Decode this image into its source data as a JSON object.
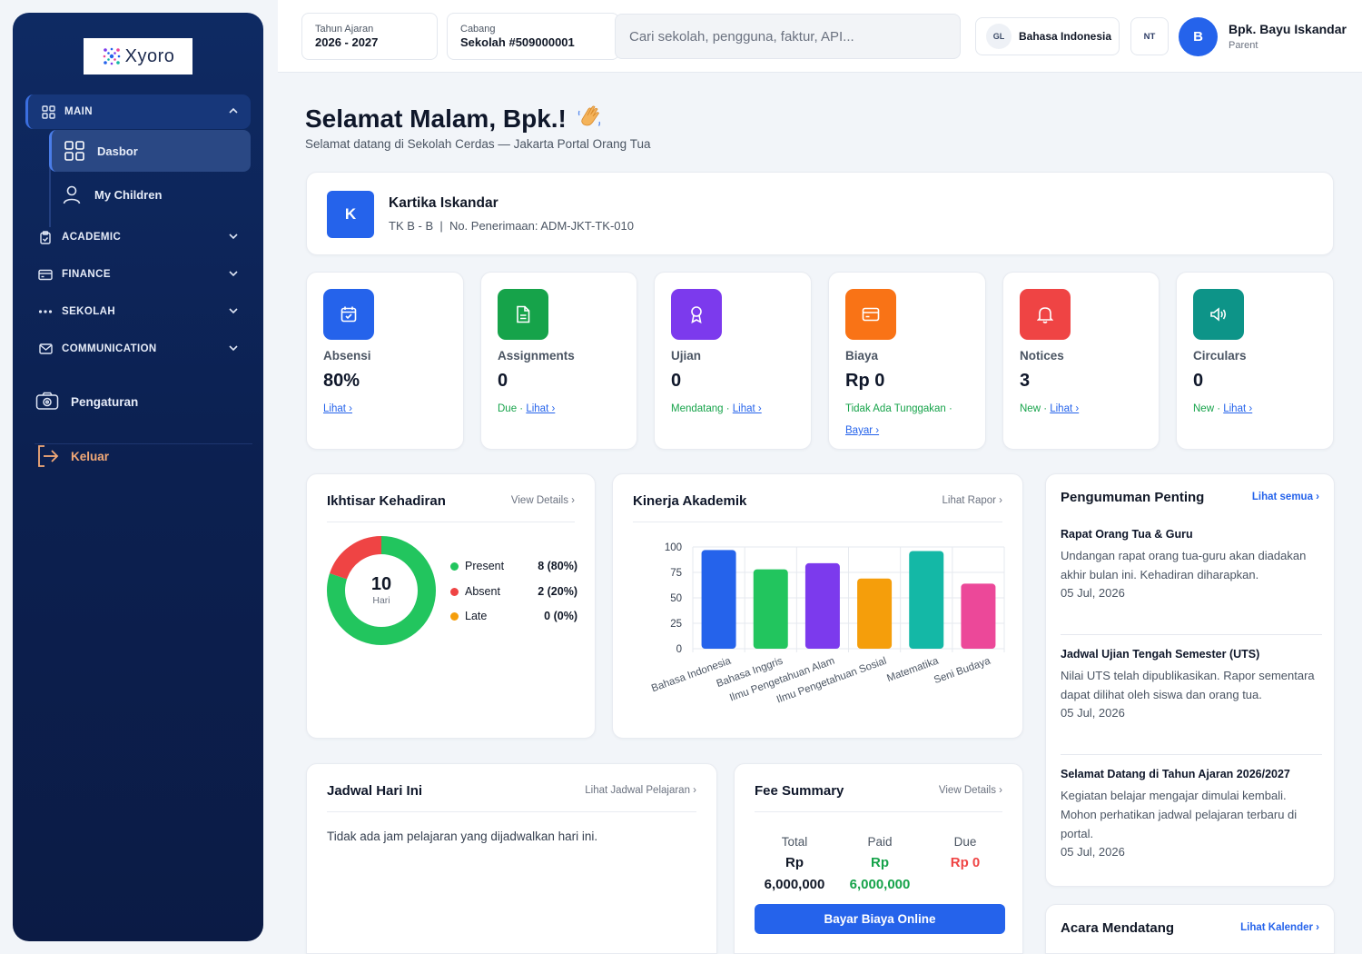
{
  "brand": {
    "name": "Xyoro"
  },
  "sidebar": {
    "main_label": "MAIN",
    "items": [
      {
        "label": "Dasbor"
      },
      {
        "label": "My Children"
      }
    ],
    "groups": [
      {
        "label": "ACADEMIC"
      },
      {
        "label": "FINANCE"
      },
      {
        "label": "SEKOLAH"
      },
      {
        "label": "COMMUNICATION"
      }
    ],
    "settings_label": "Pengaturan",
    "logout_label": "Keluar"
  },
  "topbar": {
    "year_label": "Tahun Ajaran",
    "year_value": "2026 - 2027",
    "branch_label": "Cabang",
    "branch_value": "Sekolah #509000001",
    "search_placeholder": "Cari sekolah, pengguna, faktur, API...",
    "lang_badge": "GL",
    "lang_label": "Bahasa Indonesia",
    "nt_badge": "NT",
    "avatar_initial": "B",
    "user_name": "Bpk. Bayu Iskandar",
    "user_role": "Parent"
  },
  "greeting": {
    "title": "Selamat Malam, Bpk.!",
    "subtitle": "Selamat datang di Sekolah Cerdas — Jakarta Portal Orang Tua"
  },
  "child": {
    "initial": "K",
    "name": "Kartika Iskandar",
    "meta": "TK B - B  |  No. Penerimaan: ADM-JKT-TK-010"
  },
  "stats": [
    {
      "label": "Absensi",
      "value": "80%",
      "note": "",
      "link": "Lihat ›",
      "color": "#2563eb",
      "icon": "calendar-check-icon"
    },
    {
      "label": "Assignments",
      "value": "0",
      "note": "Due · ",
      "link": "Lihat ›",
      "color": "#16a34a",
      "icon": "document-icon"
    },
    {
      "label": "Ujian",
      "value": "0",
      "note": "Mendatang · ",
      "link": "Lihat ›",
      "color": "#7c3aed",
      "icon": "award-icon"
    },
    {
      "label": "Biaya",
      "value": "Rp 0",
      "note": "Tidak Ada Tunggakan · ",
      "link": "Bayar ›",
      "color": "#f97316",
      "icon": "credit-card-icon"
    },
    {
      "label": "Notices",
      "value": "3",
      "note": "New · ",
      "link": "Lihat ›",
      "color": "#ef4444",
      "icon": "bell-icon"
    },
    {
      "label": "Circulars",
      "value": "0",
      "note": "New · ",
      "link": "Lihat ›",
      "color": "#0d9488",
      "icon": "megaphone-icon"
    }
  ],
  "attendance": {
    "title": "Ikhtisar Kehadiran",
    "link": "View Details ›",
    "total": "10",
    "total_unit": "Hari",
    "rows": [
      {
        "label": "Present",
        "value": "8 (80%)",
        "color": "#22c55e",
        "fraction": 0.8
      },
      {
        "label": "Absent",
        "value": "2 (20%)",
        "color": "#ef4444",
        "fraction": 0.2
      },
      {
        "label": "Late",
        "value": "0 (0%)",
        "color": "#f59e0b",
        "fraction": 0
      }
    ]
  },
  "performance": {
    "title": "Kinerja Akademik",
    "link": "Lihat Rapor ›"
  },
  "chart_data": {
    "type": "bar",
    "categories": [
      "Bahasa Indonesia",
      "Bahasa Inggris",
      "Ilmu Pengetahuan Alam",
      "Ilmu Pengetahuan Sosial",
      "Matematika",
      "Seni Budaya"
    ],
    "values": [
      97,
      78,
      84,
      69,
      96,
      64
    ],
    "colors": [
      "#2563eb",
      "#22c55e",
      "#7c3aed",
      "#f59e0b",
      "#14b8a6",
      "#ec4899"
    ],
    "yticks": [
      0,
      25,
      50,
      75,
      100
    ],
    "ylim": [
      0,
      100
    ],
    "grid": true
  },
  "schedule": {
    "title": "Jadwal Hari Ini",
    "link": "Lihat Jadwal Pelajaran ›",
    "empty": "Tidak ada jam pelajaran yang dijadwalkan hari ini."
  },
  "fee": {
    "title": "Fee Summary",
    "link": "View Details ›",
    "cols": [
      {
        "label": "Total",
        "line1": "Rp",
        "line2": "6,000,000",
        "color": "#111827"
      },
      {
        "label": "Paid",
        "line1": "Rp",
        "line2": "6,000,000",
        "color": "#16a34a"
      },
      {
        "label": "Due",
        "line1": "Rp 0",
        "line2": "",
        "color": "#ef4444"
      }
    ],
    "button": "Bayar Biaya Online"
  },
  "announcements": {
    "title": "Pengumuman Penting",
    "link": "Lihat semua ›",
    "items": [
      {
        "title": "Rapat Orang Tua & Guru",
        "desc": "Undangan rapat orang tua-guru akan diadakan akhir bulan ini. Kehadiran diharapkan.",
        "date": "05 Jul, 2026"
      },
      {
        "title": "Jadwal Ujian Tengah Semester (UTS)",
        "desc": "Nilai UTS telah dipublikasikan. Rapor sementara dapat dilihat oleh siswa dan orang tua.",
        "date": "05 Jul, 2026"
      },
      {
        "title": "Selamat Datang di Tahun Ajaran 2026/2027",
        "desc": "Kegiatan belajar mengajar dimulai kembali. Mohon perhatikan jadwal pelajaran terbaru di portal.",
        "date": "05 Jul, 2026"
      }
    ]
  },
  "events": {
    "title": "Acara Mendatang",
    "link": "Lihat Kalender ›"
  }
}
